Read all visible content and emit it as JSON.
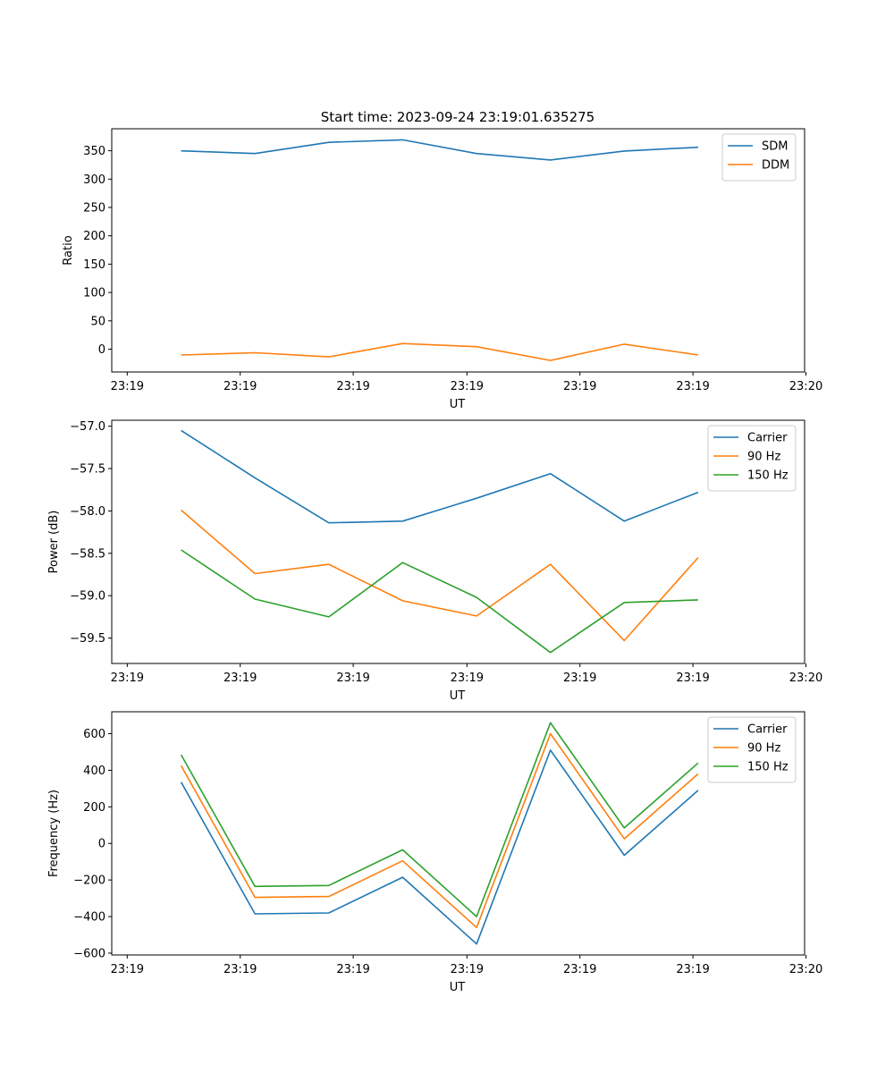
{
  "title": "Start time: 2023-09-24 23:19:01.635275",
  "x_tick_labels": [
    "23:19",
    "23:19",
    "23:19",
    "23:19",
    "23:19",
    "23:19",
    "23:20"
  ],
  "chart_data": [
    {
      "type": "line",
      "xlabel": "UT",
      "ylabel": "Ratio",
      "x": [
        1,
        2,
        3,
        4,
        5,
        6,
        7,
        8
      ],
      "ylim": [
        -40.2,
        388.8
      ],
      "yticks": [
        0,
        50,
        100,
        150,
        200,
        250,
        300,
        350
      ],
      "ytick_labels": [
        "0",
        "50",
        "100",
        "150",
        "200",
        "250",
        "300",
        "350"
      ],
      "legend": "top-right",
      "series": [
        {
          "name": "SDM",
          "color": "#1f77b4",
          "values": [
            349.8,
            345.1,
            364.9,
            369.2,
            345.1,
            333.8,
            349.6,
            356.1
          ]
        },
        {
          "name": "DDM",
          "color": "#ff7f0e",
          "values": [
            -10.3,
            -6.3,
            -13.5,
            9.9,
            4.4,
            -19.8,
            8.9,
            -10.3
          ]
        }
      ]
    },
    {
      "type": "line",
      "xlabel": "UT",
      "ylabel": "Power (dB)",
      "x": [
        1,
        2,
        3,
        4,
        5,
        6,
        7,
        8
      ],
      "ylim": [
        -59.8,
        -56.93
      ],
      "yticks": [
        -57.0,
        -57.5,
        -58.0,
        -58.5,
        -59.0,
        -59.5
      ],
      "ytick_labels": [
        "−57.0",
        "−57.5",
        "−58.0",
        "−58.5",
        "−59.0",
        "−59.5"
      ],
      "legend": "top-right",
      "series": [
        {
          "name": "Carrier",
          "color": "#1f77b4",
          "values": [
            -57.05,
            -57.61,
            -58.14,
            -58.12,
            -57.85,
            -57.56,
            -58.12,
            -57.78
          ]
        },
        {
          "name": "90 Hz",
          "color": "#ff7f0e",
          "values": [
            -57.99,
            -58.74,
            -58.63,
            -59.06,
            -59.24,
            -58.63,
            -59.53,
            -58.55
          ]
        },
        {
          "name": "150 Hz",
          "color": "#2ca02c",
          "values": [
            -58.46,
            -59.04,
            -59.25,
            -58.61,
            -59.02,
            -59.67,
            -59.08,
            -59.05
          ]
        }
      ]
    },
    {
      "type": "line",
      "xlabel": "UT",
      "ylabel": "Frequency (Hz)",
      "x": [
        1,
        2,
        3,
        4,
        5,
        6,
        7,
        8
      ],
      "ylim": [
        -610,
        720
      ],
      "yticks": [
        -600,
        -400,
        -200,
        0,
        200,
        400,
        600
      ],
      "ytick_labels": [
        "−600",
        "−400",
        "−200",
        "0",
        "200",
        "400",
        "600"
      ],
      "legend": "top-right",
      "series": [
        {
          "name": "Carrier",
          "color": "#1f77b4",
          "values": [
            335,
            -385,
            -380,
            -185,
            -550,
            510,
            -65,
            290
          ]
        },
        {
          "name": "90 Hz",
          "color": "#ff7f0e",
          "values": [
            425,
            -295,
            -290,
            -95,
            -460,
            600,
            25,
            380
          ]
        },
        {
          "name": "150 Hz",
          "color": "#2ca02c",
          "values": [
            485,
            -235,
            -230,
            -35,
            -400,
            660,
            85,
            440
          ]
        }
      ]
    }
  ]
}
